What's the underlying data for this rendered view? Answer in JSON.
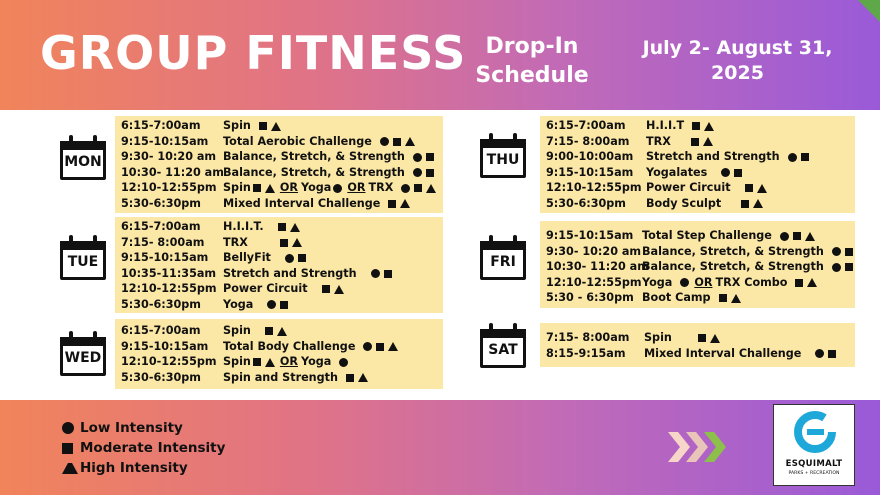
{
  "header": {
    "title": "GROUP FITNESS",
    "subtitle_line1": "Drop-In",
    "subtitle_line2": "Schedule",
    "dates_line1": "July 2- August 31,",
    "dates_line2": "2025"
  },
  "colors": {
    "panel": "#fbe7a6",
    "gradient_start": "#f1845a",
    "gradient_end": "#9a5ad8"
  },
  "days": {
    "mon": {
      "label": "MON",
      "rows": [
        {
          "time": "6:15-7:00am",
          "cls": "Spin"
        },
        {
          "time": "9:15-10:15am",
          "cls": "Total Aerobic Challenge"
        },
        {
          "time": "9:30- 10:20 am",
          "cls": "Balance, Stretch, & Strength"
        },
        {
          "time": "10:30- 11:20 am",
          "cls": "Balance, Stretch, & Strength"
        },
        {
          "time": "12:10-12:55pm",
          "cls": "Spin",
          "or1": "OR",
          "cls2": "Yoga",
          "or2": "OR",
          "cls3": "TRX"
        },
        {
          "time": "5:30-6:30pm",
          "cls": "Mixed Interval Challenge"
        }
      ]
    },
    "tue": {
      "label": "TUE",
      "rows": [
        {
          "time": "6:15-7:00am",
          "cls": "H.I.I.T."
        },
        {
          "time": "7:15- 8:00am",
          "cls": "TRX"
        },
        {
          "time": "9:15-10:15am",
          "cls": "BellyFit"
        },
        {
          "time": "10:35-11:35am",
          "cls": "Stretch and Strength"
        },
        {
          "time": "12:10-12:55pm",
          "cls": "Power Circuit"
        },
        {
          "time": "5:30-6:30pm",
          "cls": "Yoga"
        }
      ]
    },
    "wed": {
      "label": "WED",
      "rows": [
        {
          "time": "6:15-7:00am",
          "cls": "Spin"
        },
        {
          "time": "9:15-10:15am",
          "cls": "Total Body Challenge"
        },
        {
          "time": "12:10-12:55pm",
          "cls": "Spin",
          "or1": "OR",
          "cls2": "Yoga"
        },
        {
          "time": "5:30-6:30pm",
          "cls": "Spin and Strength"
        }
      ]
    },
    "thu": {
      "label": "THU",
      "rows": [
        {
          "time": "6:15-7:00am",
          "cls": "H.I.I.T"
        },
        {
          "time": "7:15- 8:00am",
          "cls": "TRX"
        },
        {
          "time": "9:00-10:00am",
          "cls": "Stretch and Strength"
        },
        {
          "time": "9:15-10:15am",
          "cls": "Yogalates"
        },
        {
          "time": "12:10-12:55pm",
          "cls": "Power Circuit"
        },
        {
          "time": "5:30-6:30pm",
          "cls": "Body Sculpt"
        }
      ]
    },
    "fri": {
      "label": "FRI",
      "rows": [
        {
          "time": "9:15-10:15am",
          "cls": "Total Step Challenge"
        },
        {
          "time": "9:30- 10:20 am",
          "cls": "Balance, Stretch, & Strength"
        },
        {
          "time": "10:30- 11:20 am",
          "cls": "Balance, Stretch, & Strength"
        },
        {
          "time": "12:10-12:55pm",
          "cls": "Yoga",
          "or1": "OR",
          "cls2": "TRX Combo"
        },
        {
          "time": "5:30 - 6:30pm",
          "cls": "Boot Camp"
        }
      ]
    },
    "sat": {
      "label": "SAT",
      "rows": [
        {
          "time": "7:15- 8:00am",
          "cls": "Spin"
        },
        {
          "time": "8:15-9:15am",
          "cls": "Mixed Interval Challenge"
        }
      ]
    }
  },
  "legend": {
    "low": "Low Intensity",
    "moderate": "Moderate Intensity",
    "high": "High Intensity"
  },
  "logo": {
    "name": "ESQUIMALT",
    "sub": "PARKS + RECREATION"
  }
}
